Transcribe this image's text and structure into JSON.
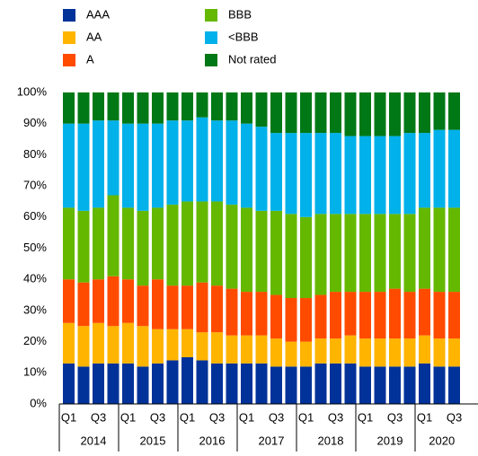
{
  "chart_data": {
    "type": "bar",
    "stacked": true,
    "categories": [
      "Q1",
      null,
      "Q3",
      null,
      "Q1",
      null,
      "Q3",
      null,
      "Q1",
      null,
      "Q3",
      null,
      "Q1",
      null,
      "Q3",
      null,
      "Q1",
      null,
      "Q3",
      null,
      "Q1",
      null,
      "Q3",
      null,
      "Q1",
      null,
      "Q3"
    ],
    "groups": [
      "2014",
      "2015",
      "2016",
      "2017",
      "2018",
      "2019",
      "2020"
    ],
    "ylim": [
      0,
      100
    ],
    "yticks": [
      {
        "value": 0,
        "label": "0%"
      },
      {
        "value": 10,
        "label": "10%"
      },
      {
        "value": 20,
        "label": "20%"
      },
      {
        "value": 30,
        "label": "30%"
      },
      {
        "value": 40,
        "label": "40%"
      },
      {
        "value": 50,
        "label": "50%"
      },
      {
        "value": 60,
        "label": "60%"
      },
      {
        "value": 70,
        "label": "70%"
      },
      {
        "value": 80,
        "label": "80%"
      },
      {
        "value": 90,
        "label": "90%"
      },
      {
        "value": 100,
        "label": "100%"
      }
    ],
    "series": [
      {
        "name": "AAA",
        "color": "#003299",
        "values": [
          13,
          12,
          13,
          13,
          13,
          12,
          13,
          14,
          15,
          14,
          13,
          13,
          13,
          13,
          12,
          12,
          12,
          13,
          13,
          13,
          12,
          12,
          12,
          12,
          13,
          12,
          12
        ]
      },
      {
        "name": "AA",
        "color": "#ffb400",
        "values": [
          13,
          13,
          13,
          12,
          13,
          13,
          11,
          10,
          9,
          9,
          10,
          9,
          9,
          9,
          9,
          8,
          8,
          8,
          8,
          9,
          9,
          9,
          9,
          9,
          9,
          9,
          9
        ]
      },
      {
        "name": "A",
        "color": "#ff4b00",
        "values": [
          14,
          14,
          14,
          16,
          14,
          13,
          16,
          14,
          14,
          16,
          15,
          15,
          14,
          14,
          14,
          14,
          14,
          14,
          15,
          14,
          15,
          15,
          16,
          15,
          15,
          15,
          15
        ]
      },
      {
        "name": "BBB",
        "color": "#65b800",
        "values": [
          23,
          23,
          23,
          26,
          23,
          24,
          23,
          26,
          27,
          26,
          27,
          27,
          27,
          26,
          27,
          27,
          26,
          26,
          25,
          25,
          25,
          25,
          24,
          25,
          26,
          27,
          27
        ]
      },
      {
        "name": "<BBB",
        "color": "#00b1ea",
        "values": [
          27,
          28,
          28,
          24,
          27,
          28,
          27,
          27,
          26,
          27,
          26,
          27,
          27,
          27,
          25,
          26,
          27,
          26,
          26,
          25,
          25,
          25,
          25,
          26,
          24,
          25,
          25
        ]
      },
      {
        "name": "Not rated",
        "color": "#007816",
        "values": [
          10,
          10,
          9,
          9,
          10,
          10,
          10,
          9,
          9,
          8,
          9,
          9,
          10,
          11,
          13,
          13,
          13,
          13,
          13,
          14,
          14,
          14,
          14,
          13,
          13,
          12,
          12
        ]
      }
    ]
  }
}
